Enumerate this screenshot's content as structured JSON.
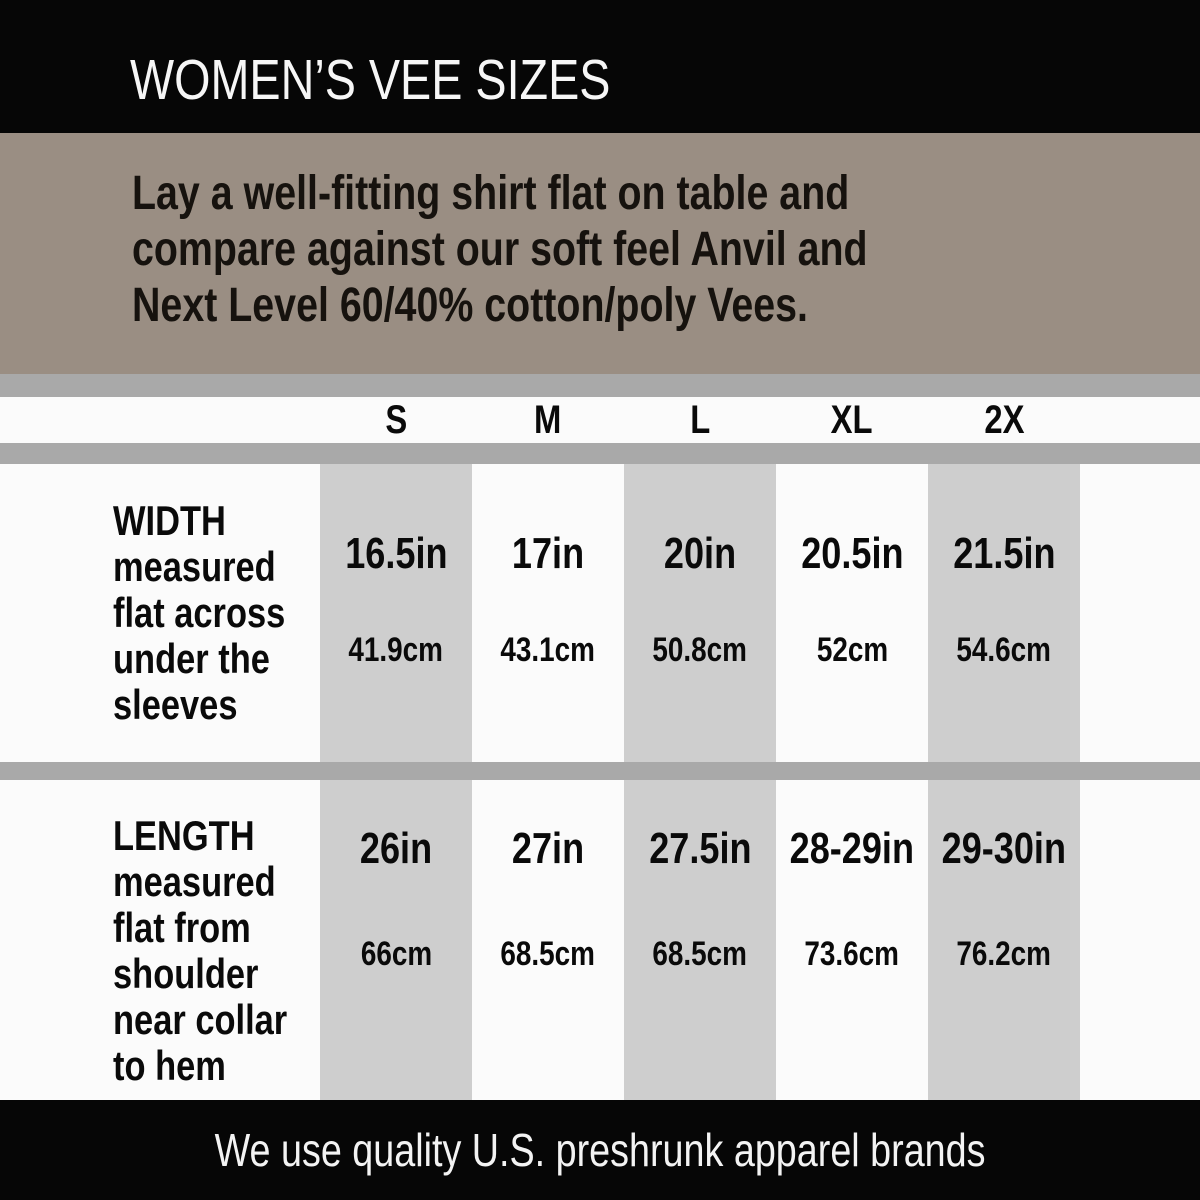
{
  "header": {
    "title": "WOMEN’S VEE SIZES"
  },
  "intro": {
    "lines": [
      "Lay a well-fitting shirt flat on table and",
      "compare against our soft feel Anvil and",
      "Next Level 60/40% cotton/poly Vees."
    ]
  },
  "table": {
    "sizes": [
      "S",
      "M",
      "L",
      "XL",
      "2X"
    ],
    "rows": [
      {
        "name": "WIDTH",
        "desc": [
          "measured",
          "flat across",
          "under the",
          "sleeves"
        ],
        "values": [
          {
            "in": "16.5in",
            "cm": "41.9cm"
          },
          {
            "in": "17in",
            "cm": "43.1cm"
          },
          {
            "in": "20in",
            "cm": "50.8cm"
          },
          {
            "in": "20.5in",
            "cm": "52cm"
          },
          {
            "in": "21.5in",
            "cm": "54.6cm"
          }
        ]
      },
      {
        "name": "LENGTH",
        "desc": [
          "measured",
          "flat from",
          "shoulder",
          "near collar",
          "to hem"
        ],
        "values": [
          {
            "in": "26in",
            "cm": "66cm"
          },
          {
            "in": "27in",
            "cm": "68.5cm"
          },
          {
            "in": "27.5in",
            "cm": "68.5cm"
          },
          {
            "in": "28-29in",
            "cm": "73.6cm"
          },
          {
            "in": "29-30in",
            "cm": "76.2cm"
          }
        ]
      }
    ]
  },
  "footer": {
    "text": "We use quality U.S. preshrunk apparel brands"
  },
  "colors": {
    "bar_black": "#060606",
    "intro_tan": "#9a8e83",
    "strip_gray": "#a9a9a9",
    "band_gray": "#cecece",
    "background_white": "#fbfbfb",
    "text_dark": "#0a0a0a",
    "text_light": "#f6f6f6"
  },
  "chart_data": {
    "type": "table",
    "title": "WOMEN’S VEE SIZES",
    "columns": [
      "S",
      "M",
      "L",
      "XL",
      "2X"
    ],
    "rows": [
      {
        "label": "WIDTH measured flat across under the sleeves",
        "inches": [
          16.5,
          17,
          20,
          20.5,
          21.5
        ],
        "cm": [
          41.9,
          43.1,
          50.8,
          52,
          54.6
        ]
      },
      {
        "label": "LENGTH measured flat from shoulder near collar to hem",
        "inches": [
          "26",
          "27",
          "27.5",
          "28-29",
          "29-30"
        ],
        "cm": [
          66,
          68.5,
          68.5,
          73.6,
          76.2
        ]
      }
    ],
    "note": "Lay a well-fitting shirt flat on table and compare against our soft feel Anvil and Next Level 60/40% cotton/poly Vees. We use quality U.S. preshrunk apparel brands."
  }
}
